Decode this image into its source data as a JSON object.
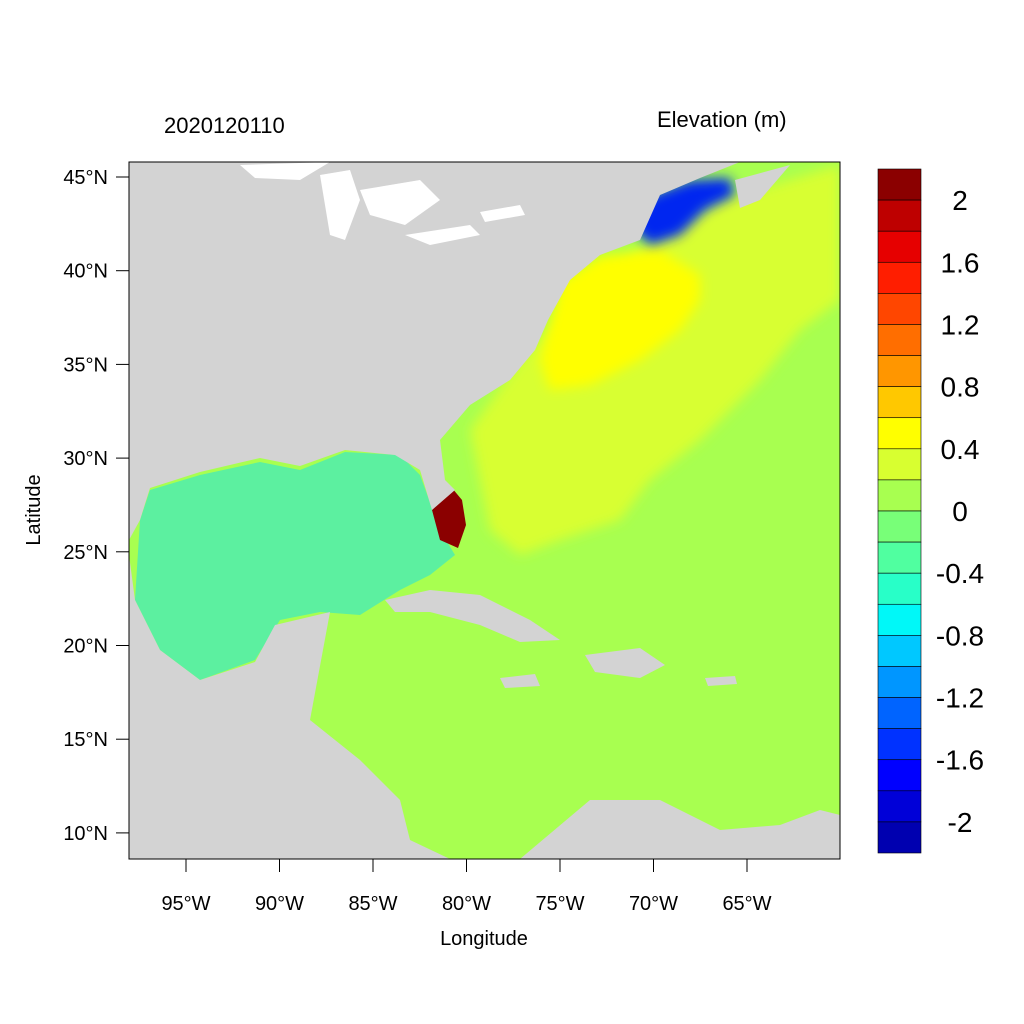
{
  "map": {
    "timestamp": "2020120110",
    "variable_title": "Elevation (m)",
    "xlabel": "Longitude",
    "ylabel": "Latitude",
    "x_ticks": [
      "95°W",
      "90°W",
      "85°W",
      "80°W",
      "75°W",
      "70°W",
      "65°W"
    ],
    "y_ticks": [
      "45°N",
      "40°N",
      "35°N",
      "30°N",
      "25°N",
      "20°N",
      "15°N",
      "10°N"
    ],
    "colors": {
      "land": "#d3d3d3",
      "gulf": "#5cf0a0",
      "caribbean": "#a8ff50",
      "atlantic_high": "#d8ff30",
      "offshore_bulge": "#ffff00",
      "gulf_of_maine": "#0028f0",
      "florida_surge": "#8b0000"
    }
  },
  "colorbar": {
    "labels": [
      "2",
      "1.6",
      "1.2",
      "0.8",
      "0.4",
      "0",
      "-0.4",
      "-0.8",
      "-1.2",
      "-1.6",
      "-2"
    ],
    "colors": [
      "#8b0000",
      "#be0000",
      "#e60000",
      "#ff1e00",
      "#ff4600",
      "#ff6e00",
      "#ff9600",
      "#ffc800",
      "#ffff00",
      "#d8ff30",
      "#a8ff50",
      "#78ff78",
      "#50ffa0",
      "#28ffc8",
      "#00f8f8",
      "#00c8ff",
      "#0096ff",
      "#0064ff",
      "#0032ff",
      "#0000ff",
      "#0000d8",
      "#0000b0"
    ]
  }
}
